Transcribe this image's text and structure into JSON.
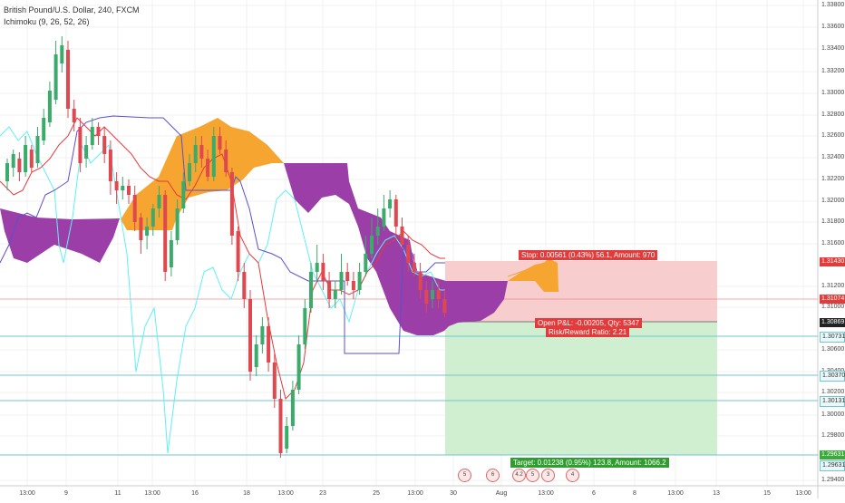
{
  "header": {
    "title": "British Pound/U.S. Dollar, 240, FXCM",
    "indicator": "Ichimoku (9, 26, 52, 26)"
  },
  "y_axis": {
    "labels": [
      "1.33800",
      "1.33600",
      "1.33400",
      "1.33200",
      "1.33000",
      "1.32800",
      "1.32600",
      "1.32400",
      "1.32200",
      "1.32000",
      "1.31800",
      "1.31600",
      "1.31200",
      "1.31000",
      "1.30600",
      "1.30400",
      "1.30200",
      "1.30000",
      "1.29800",
      "1.29400"
    ]
  },
  "x_axis": {
    "labels": [
      "13:00",
      "9",
      "13:00",
      "11",
      "13:00",
      "16",
      "13:00",
      "18",
      "13:00",
      "23",
      "13:00",
      "25",
      "13:00",
      "30",
      "Aug",
      "13:00",
      "6",
      "13:00",
      "8",
      "13:00",
      "13",
      "15",
      "13:00"
    ]
  },
  "price_tags": {
    "stop": "1.31430",
    "current": "1.31074",
    "entry": "1.30869",
    "line1": "1.30731",
    "line2": "1.30370",
    "line3": "1.30131",
    "target_a": "1.29631",
    "target_b": "1.29631"
  },
  "position": {
    "stop_label": "Stop: 0.00561 (0.43%) 56.1, Amount: 970",
    "open_pnl": "Open P&L: -0.00205, Qty: 5347",
    "risk_reward": "Risk/Reward Ratio: 2.21",
    "target_label": "Target: 0.01238 (0.95%) 123.8, Amount: 1066.2"
  },
  "events": [
    "5",
    "6",
    "4.2",
    "5",
    "3",
    "4"
  ],
  "colors": {
    "bull": "#3bab6b",
    "bear": "#e04850",
    "cloud_bull": "#f6a531",
    "cloud_bear": "#9b3ea7",
    "tenkan": "#e23b3b",
    "kijun": "#5b4fd0",
    "chikou": "#5ef0f5",
    "stop_zone": "#f7c8c8",
    "target_zone": "#cdeecd",
    "hline": "#6fc7cf"
  }
}
